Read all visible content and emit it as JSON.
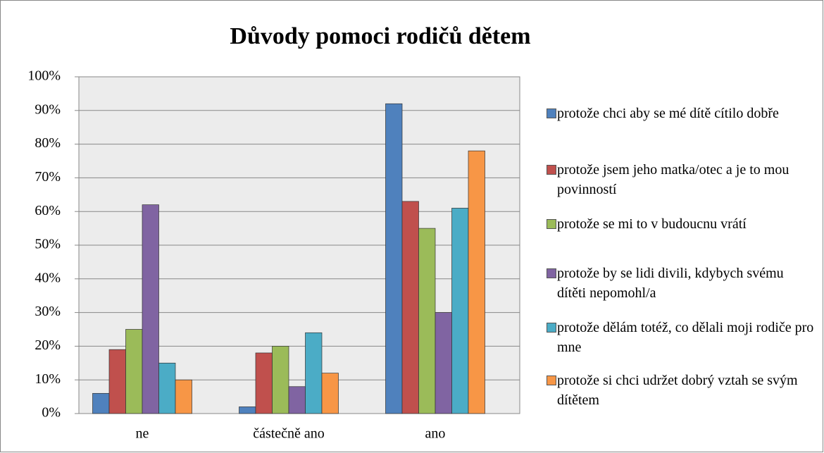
{
  "chart_data": {
    "type": "bar",
    "title": "Důvody pomoci rodičů dětem",
    "categories": [
      "ne",
      "částečně ano",
      "ano"
    ],
    "series": [
      {
        "name": "protože chci aby se mé dítě cítilo dobře",
        "color": "#4f81bd",
        "values": [
          6,
          2,
          92
        ]
      },
      {
        "name": "protože jsem jeho matka/otec a je to mou povinností",
        "color": "#c0504d",
        "values": [
          19,
          18,
          63
        ]
      },
      {
        "name": "protože se mi to v budoucnu vrátí",
        "color": "#9bbb59",
        "values": [
          25,
          20,
          55
        ]
      },
      {
        "name": "protože by se lidi divili, kdybych svému dítěti nepomohl/a",
        "color": "#8064a2",
        "values": [
          62,
          8,
          30
        ]
      },
      {
        "name": "protože dělám totéž, co dělali moji rodiče pro mne",
        "color": "#4bacc6",
        "values": [
          15,
          24,
          61
        ]
      },
      {
        "name": "protože si chci udržet dobrý vztah se svým dítětem",
        "color": "#f79646",
        "values": [
          10,
          12,
          78
        ]
      }
    ],
    "ylim": [
      0,
      100
    ],
    "yticks": [
      {
        "value": 0,
        "label": "0%"
      },
      {
        "value": 10,
        "label": "10%"
      },
      {
        "value": 20,
        "label": "20%"
      },
      {
        "value": 30,
        "label": "30%"
      },
      {
        "value": 40,
        "label": "40%"
      },
      {
        "value": 50,
        "label": "50%"
      },
      {
        "value": 60,
        "label": "60%"
      },
      {
        "value": 70,
        "label": "70%"
      },
      {
        "value": 80,
        "label": "80%"
      },
      {
        "value": 90,
        "label": "90%"
      },
      {
        "value": 100,
        "label": "100%"
      }
    ],
    "grid": true,
    "legend": "right"
  }
}
